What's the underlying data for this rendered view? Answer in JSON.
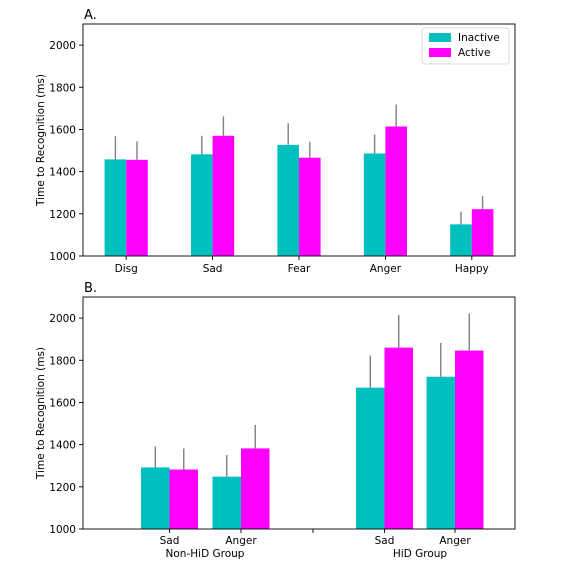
{
  "chart_data": [
    {
      "panel_label": "A.",
      "type": "bar",
      "ylabel": "Time to Recognition (ms)",
      "ylim": [
        1000,
        2100
      ],
      "yticks": [
        1000,
        1200,
        1400,
        1600,
        1800,
        2000
      ],
      "categories": [
        "Disg",
        "Sad",
        "Fear",
        "Anger",
        "Happy"
      ],
      "series": [
        {
          "name": "Inactive",
          "color": "#00BFBF",
          "values": [
            1458,
            1482,
            1527,
            1486,
            1150
          ],
          "error": [
            110,
            88,
            102,
            90,
            60
          ]
        },
        {
          "name": "Active",
          "color": "#FF00FF",
          "values": [
            1456,
            1570,
            1466,
            1614,
            1222
          ],
          "error": [
            87,
            92,
            76,
            104,
            62
          ]
        }
      ],
      "legend": "top-right",
      "error_color": "#808080"
    },
    {
      "panel_label": "B.",
      "type": "bar",
      "ylabel": "Time to Recognition (ms)",
      "ylim": [
        1000,
        2100
      ],
      "yticks": [
        1000,
        1200,
        1400,
        1600,
        1800,
        2000
      ],
      "groups": [
        {
          "label": "Non-HiD Group",
          "categories": [
            "Sad",
            "Anger"
          ]
        },
        {
          "label": "HiD Group",
          "categories": [
            "Sad",
            "Anger"
          ]
        }
      ],
      "series": [
        {
          "name": "Inactive",
          "color": "#00BFBF",
          "values": [
            1292,
            1248,
            1670,
            1722
          ],
          "error": [
            100,
            103,
            152,
            160
          ]
        },
        {
          "name": "Active",
          "color": "#FF00FF",
          "values": [
            1282,
            1382,
            1860,
            1846
          ],
          "error": [
            100,
            112,
            155,
            176
          ]
        }
      ],
      "error_color": "#808080"
    }
  ]
}
